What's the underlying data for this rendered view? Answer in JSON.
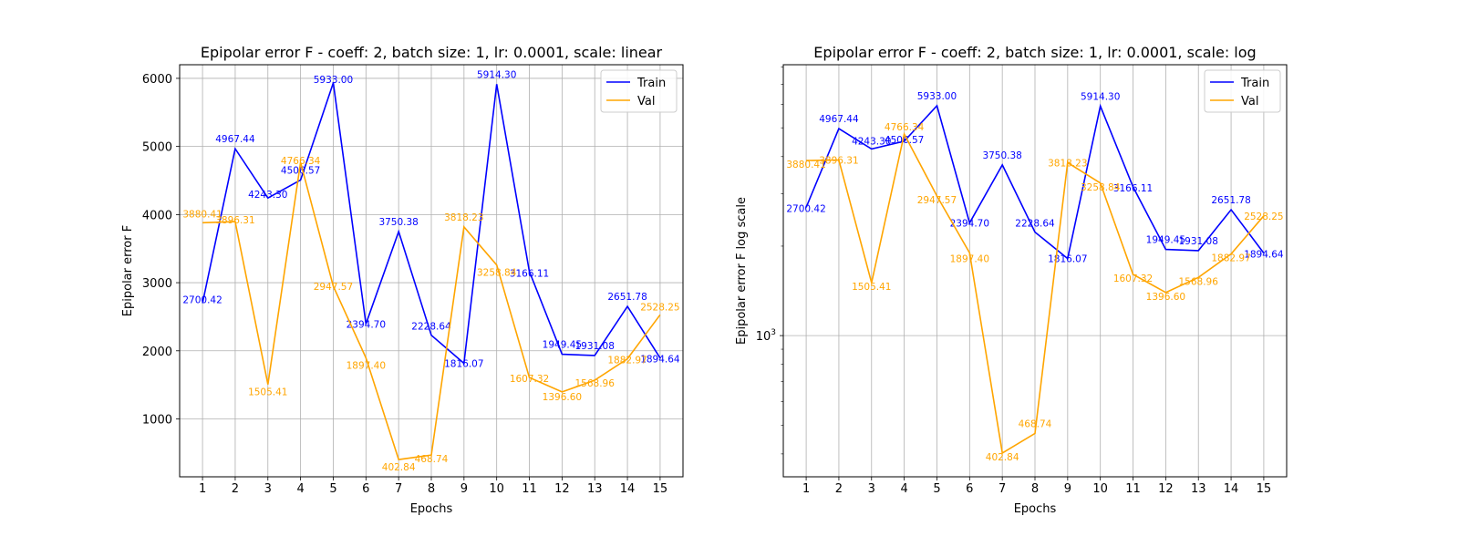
{
  "chart_data": [
    {
      "type": "line",
      "title": "Epipolar error F - coeff: 2, batch size: 1, lr: 0.0001, scale: linear",
      "xlabel": "Epochs",
      "ylabel": "Epipolar error F",
      "yscale": "linear",
      "xlim": [
        0.3,
        15.7
      ],
      "ylim": [
        150,
        6200
      ],
      "x": [
        1,
        2,
        3,
        4,
        5,
        6,
        7,
        8,
        9,
        10,
        11,
        12,
        13,
        14,
        15
      ],
      "xticks": [
        "1",
        "2",
        "3",
        "4",
        "5",
        "6",
        "7",
        "8",
        "9",
        "10",
        "11",
        "12",
        "13",
        "14",
        "15"
      ],
      "yticks": [
        1000,
        2000,
        3000,
        4000,
        5000,
        6000
      ],
      "ytick_labels": [
        "1000",
        "2000",
        "3000",
        "4000",
        "5000",
        "6000"
      ],
      "grid": true,
      "legend_position": "top-right",
      "series": [
        {
          "name": "Train",
          "color": "#0000ff",
          "values": [
            2700.42,
            4967.44,
            4243.3,
            4506.57,
            5933.0,
            2394.7,
            3750.38,
            2228.64,
            1816.07,
            5914.3,
            3166.11,
            1949.45,
            1931.08,
            2651.78,
            1894.64
          ],
          "labels": [
            "2700.42",
            "4967.44",
            "4243.30",
            "4506.57",
            "5933.00",
            "2394.70",
            "3750.38",
            "2228.64",
            "1816.07",
            "5914.30",
            "3166.11",
            "1949.45",
            "1931.08",
            "2651.78",
            "1894.64"
          ]
        },
        {
          "name": "Val",
          "color": "#ffa500",
          "values": [
            3880.41,
            3896.31,
            1505.41,
            4766.34,
            2947.57,
            1897.4,
            402.84,
            468.74,
            3818.23,
            3258.84,
            1607.32,
            1396.6,
            1568.96,
            1882.97,
            2528.25
          ],
          "labels": [
            "3880.41",
            "3896.31",
            "1505.41",
            "4766.34",
            "2947.57",
            "1897.40",
            "402.84",
            "468.74",
            "3818.23",
            "3258.84",
            "1607.32",
            "1396.60",
            "1568.96",
            "1882.97",
            "2528.25"
          ]
        }
      ]
    },
    {
      "type": "line",
      "title": "Epipolar error F - coeff: 2, batch size: 1, lr: 0.0001, scale: log",
      "xlabel": "Epochs",
      "ylabel": "Epipolar error F log scale",
      "yscale": "log",
      "xlim": [
        0.3,
        15.7
      ],
      "ylim": [
        335,
        8150
      ],
      "x": [
        1,
        2,
        3,
        4,
        5,
        6,
        7,
        8,
        9,
        10,
        11,
        12,
        13,
        14,
        15
      ],
      "xticks": [
        "1",
        "2",
        "3",
        "4",
        "5",
        "6",
        "7",
        "8",
        "9",
        "10",
        "11",
        "12",
        "13",
        "14",
        "15"
      ],
      "yticks": [
        1000
      ],
      "ytick_labels": [
        "10^3"
      ],
      "grid": true,
      "legend_position": "top-right",
      "series": [
        {
          "name": "Train",
          "color": "#0000ff",
          "values": [
            2700.42,
            4967.44,
            4243.3,
            4506.57,
            5933.0,
            2394.7,
            3750.38,
            2228.64,
            1816.07,
            5914.3,
            3166.11,
            1949.45,
            1931.08,
            2651.78,
            1894.64
          ],
          "labels": [
            "2700.42",
            "4967.44",
            "4243.30",
            "4506.57",
            "5933.00",
            "2394.70",
            "3750.38",
            "2228.64",
            "1816.07",
            "5914.30",
            "3166.11",
            "1949.45",
            "1931.08",
            "2651.78",
            "1894.64"
          ]
        },
        {
          "name": "Val",
          "color": "#ffa500",
          "values": [
            3880.41,
            3896.31,
            1505.41,
            4766.34,
            2947.57,
            1897.4,
            402.84,
            468.74,
            3818.23,
            3258.84,
            1607.32,
            1396.6,
            1568.96,
            1882.97,
            2528.25
          ],
          "labels": [
            "3880.41",
            "3896.31",
            "1505.41",
            "4766.34",
            "2947.57",
            "1897.40",
            "402.84",
            "468.74",
            "3818.23",
            "3258.84",
            "1607.32",
            "1396.60",
            "1568.96",
            "1882.97",
            "2528.25"
          ]
        }
      ]
    }
  ]
}
